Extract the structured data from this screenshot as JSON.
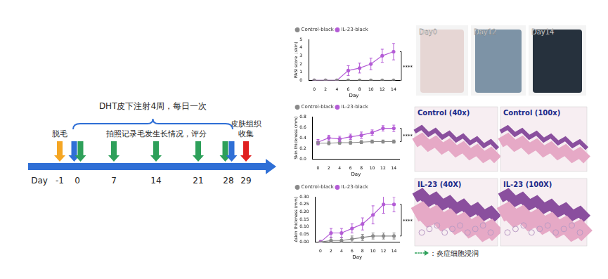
{
  "timeline": {
    "brace_label": "DHT皮下注射4周，每日一次",
    "axis_label": "Day",
    "days": [
      -1,
      0,
      7,
      14,
      21,
      28,
      29
    ],
    "arrows": [
      {
        "day": -1,
        "color": "#f5a623"
      },
      {
        "day": 0,
        "color": "#2f6fd6"
      },
      {
        "day": 0,
        "color": "#2ea05a"
      },
      {
        "day": 7,
        "color": "#2ea05a"
      },
      {
        "day": 14,
        "color": "#2ea05a"
      },
      {
        "day": 21,
        "color": "#2ea05a"
      },
      {
        "day": 28,
        "color": "#2ea05a"
      },
      {
        "day": 28,
        "color": "#2f6fd6"
      },
      {
        "day": 29,
        "color": "#e02020"
      }
    ],
    "labels": [
      {
        "day": -1,
        "lines": [
          "脱毛"
        ]
      },
      {
        "day": 14,
        "lines": [
          "拍照记录毛发生长情况，评分"
        ]
      },
      {
        "day": 29,
        "lines": [
          "皮肤组织",
          "收集"
        ]
      }
    ]
  },
  "chart_data": [
    {
      "type": "line",
      "xlabel": "Day",
      "ylabel": "PASI score（skin)",
      "x": [
        0,
        2,
        4,
        6,
        8,
        10,
        12,
        14
      ],
      "xlim": [
        -1,
        15
      ],
      "xticks": [
        0,
        2,
        4,
        6,
        8,
        10,
        12,
        14
      ],
      "ylim": [
        0,
        5
      ],
      "yticks": [
        0,
        1,
        2,
        3,
        4,
        5
      ],
      "grid": false,
      "legend": "upper left",
      "annotation": "****",
      "series": [
        {
          "name": "Control-black",
          "color": "#8a8a8a",
          "marker": "circle",
          "values": [
            0,
            0,
            0,
            0,
            0,
            0,
            0,
            0
          ],
          "errors": [
            0,
            0,
            0,
            0,
            0,
            0,
            0,
            0
          ]
        },
        {
          "name": "IL-23-black",
          "color": "#b45cd6",
          "marker": "circle",
          "values": [
            0,
            0,
            0,
            1.2,
            1.5,
            2.0,
            3.0,
            3.5
          ],
          "errors": [
            0,
            0,
            0,
            0.6,
            0.6,
            0.7,
            0.8,
            1.0
          ]
        }
      ]
    },
    {
      "type": "line",
      "xlabel": "Day",
      "ylabel": "Skin thickness (mm)",
      "x": [
        0,
        2,
        4,
        6,
        8,
        10,
        12,
        14
      ],
      "xlim": [
        -1,
        15
      ],
      "xticks": [
        0,
        2,
        4,
        6,
        8,
        10,
        12,
        14
      ],
      "ylim": [
        0,
        0.8
      ],
      "yticks": [
        {
          "value": 0,
          "label": "0.0"
        },
        {
          "value": 0.2,
          "label": "0.2"
        },
        {
          "value": 0.4,
          "label": "0.4"
        },
        {
          "value": 0.6,
          "label": "0.6"
        },
        {
          "value": 0.8,
          "label": "0.8"
        }
      ],
      "grid": false,
      "legend": "upper left",
      "annotation": "****",
      "series": [
        {
          "name": "Control-black",
          "color": "#8a8a8a",
          "marker": "circle",
          "values": [
            0.3,
            0.3,
            0.31,
            0.31,
            0.32,
            0.33,
            0.33,
            0.33
          ],
          "errors": [
            0.03,
            0.03,
            0.03,
            0.03,
            0.03,
            0.03,
            0.03,
            0.03
          ]
        },
        {
          "name": "IL-23-black",
          "color": "#b45cd6",
          "marker": "circle",
          "values": [
            0.32,
            0.4,
            0.38,
            0.42,
            0.45,
            0.5,
            0.58,
            0.58
          ],
          "errors": [
            0.05,
            0.05,
            0.05,
            0.05,
            0.06,
            0.05,
            0.05,
            0.06
          ]
        }
      ]
    },
    {
      "type": "line",
      "xlabel": "Day",
      "ylabel": "Δskin thickness (mm)",
      "x": [
        0,
        2,
        4,
        6,
        8,
        10,
        12,
        14
      ],
      "xlim": [
        -1,
        15
      ],
      "xticks": [
        0,
        2,
        4,
        6,
        8,
        10,
        12,
        14
      ],
      "ylim": [
        0,
        0.3
      ],
      "yticks": [
        {
          "value": 0,
          "label": "0.00"
        },
        {
          "value": 0.05,
          "label": "0.05"
        },
        {
          "value": 0.1,
          "label": "0.10"
        },
        {
          "value": 0.15,
          "label": "0.15"
        },
        {
          "value": 0.2,
          "label": "0.20"
        },
        {
          "value": 0.25,
          "label": "0.25"
        },
        {
          "value": 0.3,
          "label": "0.30"
        }
      ],
      "grid": false,
      "legend": "upper left",
      "annotation": "****",
      "series": [
        {
          "name": "Control-black",
          "color": "#8a8a8a",
          "marker": "circle",
          "values": [
            0,
            0.01,
            0.01,
            0.02,
            0.03,
            0.04,
            0.04,
            0.04
          ],
          "errors": [
            0.01,
            0.02,
            0.02,
            0.02,
            0.02,
            0.02,
            0.02,
            0.02
          ]
        },
        {
          "name": "IL-23-black",
          "color": "#b45cd6",
          "marker": "circle",
          "values": [
            0,
            0.06,
            0.06,
            0.09,
            0.12,
            0.18,
            0.25,
            0.25
          ],
          "errors": [
            0.01,
            0.03,
            0.03,
            0.03,
            0.04,
            0.06,
            0.06,
            0.05
          ]
        }
      ]
    }
  ],
  "photos": [
    {
      "label": "Day0",
      "color": "#e6d6d4"
    },
    {
      "label": "Day12",
      "color": "#7d93a6"
    },
    {
      "label": "Day14",
      "color": "#26313d"
    }
  ],
  "histology": [
    {
      "label": "Control (40x)"
    },
    {
      "label": "Control (100x)"
    },
    {
      "label": "IL-23 (40X)"
    },
    {
      "label": "IL-23 (100X)"
    }
  ],
  "histology_legend": {
    "text": "：炎症细胞浸润",
    "color": "#2ea05a"
  }
}
